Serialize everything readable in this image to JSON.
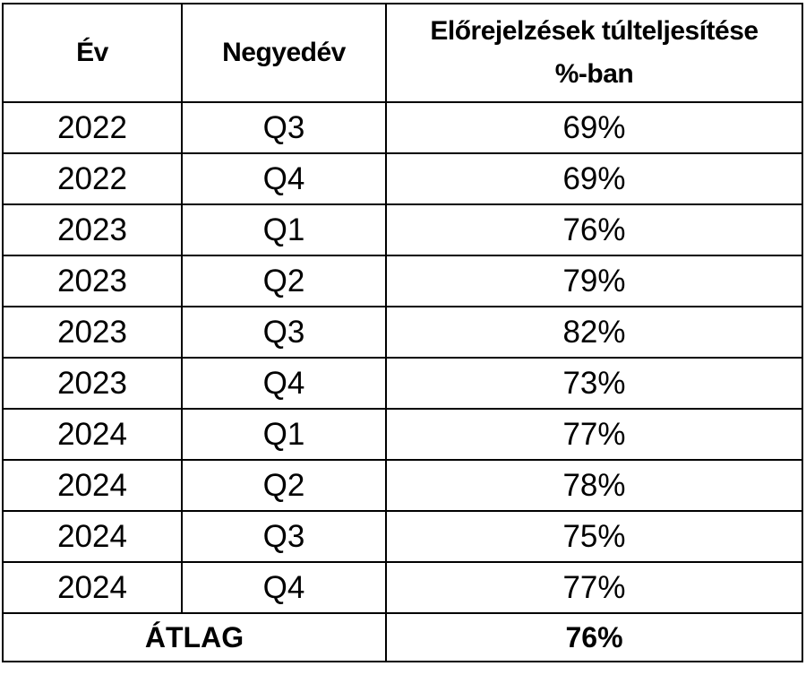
{
  "chart_data": {
    "type": "table",
    "columns": [
      "Év",
      "Negyedév",
      "Előrejelzések túlteljesítése %-ban"
    ],
    "rows": [
      [
        "2022",
        "Q3",
        "69%"
      ],
      [
        "2022",
        "Q4",
        "69%"
      ],
      [
        "2023",
        "Q1",
        "76%"
      ],
      [
        "2023",
        "Q2",
        "79%"
      ],
      [
        "2023",
        "Q3",
        "82%"
      ],
      [
        "2023",
        "Q4",
        "73%"
      ],
      [
        "2024",
        "Q1",
        "77%"
      ],
      [
        "2024",
        "Q2",
        "78%"
      ],
      [
        "2024",
        "Q3",
        "75%"
      ],
      [
        "2024",
        "Q4",
        "77%"
      ]
    ],
    "values": [
      69,
      69,
      76,
      79,
      82,
      73,
      77,
      78,
      75,
      77
    ],
    "footer": {
      "label": "ÁTLAG",
      "value": "76%"
    }
  }
}
